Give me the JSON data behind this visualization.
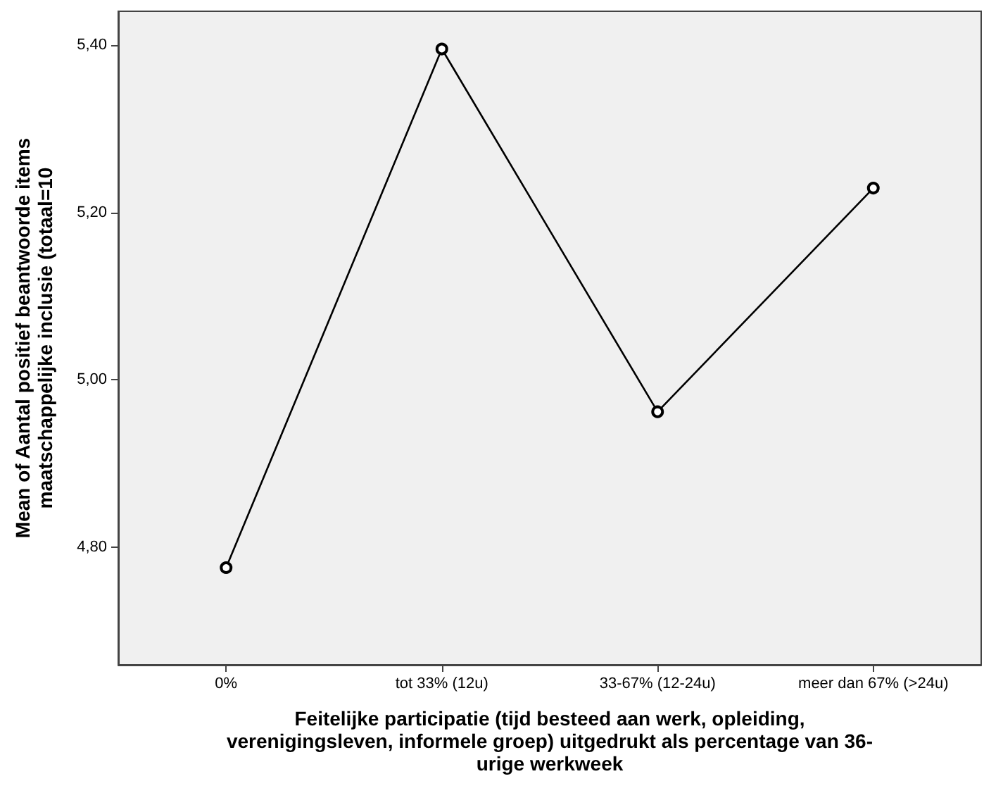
{
  "chart_data": {
    "type": "line",
    "xlabel": "Feitelijke participatie (tijd besteed aan werk, opleiding,\nverenigingsleven, informele groep) uitgedrukt als percentage van 36-\nurige werkweek",
    "ylabel": "Mean of Aantal positief beantwoorde items\nmaatschappelijke inclusie (totaal=10",
    "categories": [
      "0%",
      "tot 33% (12u)",
      "33-67% (12-24u)",
      "meer dan 67% (>24u)"
    ],
    "series": [
      {
        "color": "#000000",
        "values": [
          4.776,
          5.395,
          4.962,
          5.229
        ]
      }
    ],
    "ylim": [
      4.66,
      5.44
    ],
    "yticks": [
      {
        "value": 4.8,
        "label": "4,80"
      },
      {
        "value": 5.0,
        "label": "5,00"
      },
      {
        "value": 5.2,
        "label": "5,20"
      },
      {
        "value": 5.4,
        "label": "5,40"
      }
    ],
    "grid": false,
    "marker": "circle",
    "line_style": "solid"
  }
}
